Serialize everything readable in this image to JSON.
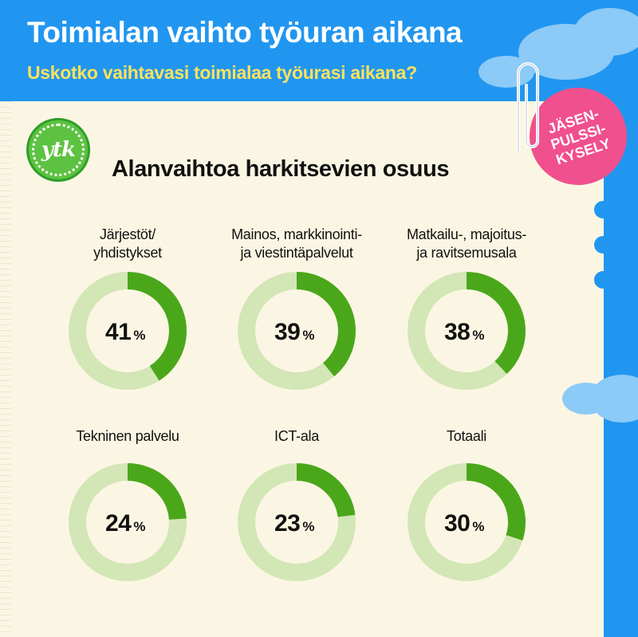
{
  "header": {
    "title": "Toimialan vaihto työuran aikana",
    "subtitle": "Uskotko vaihtavasi toimialaa työurasi aikana?"
  },
  "logo": {
    "text": "ytk"
  },
  "badge": {
    "lines": [
      "JÄSEN-",
      "PULSSI-",
      "KYSELY"
    ]
  },
  "colors": {
    "sky": "#2196f0",
    "paper": "#fbf6e3",
    "accent_green": "#4aa71a",
    "track_green": "#d3e6b6",
    "badge_pink": "#f0508d",
    "subtitle_yellow": "#fde25a"
  },
  "chart_data": {
    "type": "donut",
    "title": "Alanvaihtoa harkitsevien osuus",
    "unit": "%",
    "categories": [
      [
        "Järjestöt/",
        "yhdistykset"
      ],
      [
        "Mainos, markkinointi-",
        "ja viestintäpalvelut"
      ],
      [
        "Matkailu-, majoitus-",
        "ja ravitsemusala"
      ],
      [
        "Tekninen palvelu"
      ],
      [
        "ICT-ala"
      ],
      [
        "Totaali"
      ]
    ],
    "values": [
      41,
      39,
      38,
      24,
      23,
      30
    ]
  }
}
